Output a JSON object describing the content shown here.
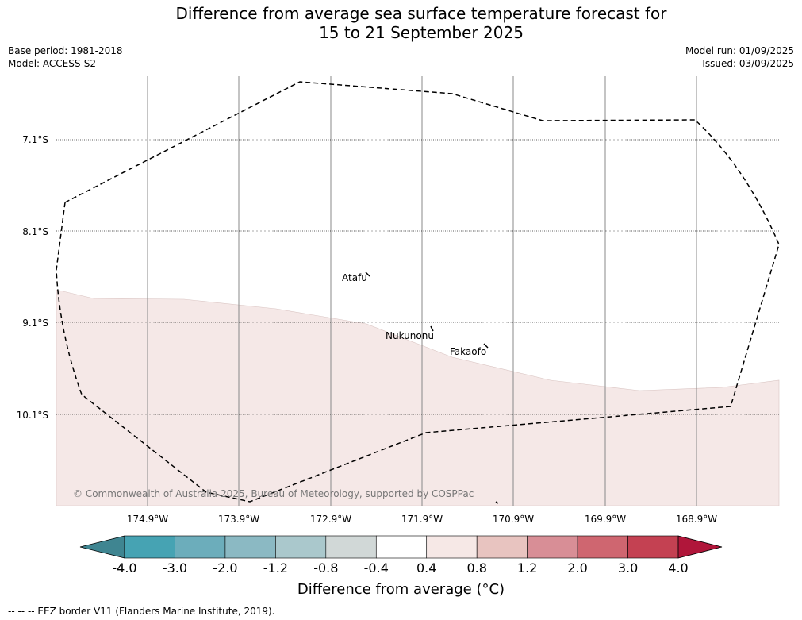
{
  "header": {
    "title_line1": "Difference from average sea surface temperature forecast for",
    "title_line2": "15 to 21 September 2025",
    "base_period": "Base period: 1981-2018",
    "model": "Model: ACCESS-S2",
    "model_run": "Model run: 01/09/2025",
    "issued": "Issued: 03/09/2025"
  },
  "map": {
    "lat_labels": [
      "7.1°S",
      "8.1°S",
      "9.1°S",
      "10.1°S"
    ],
    "lon_labels": [
      "174.9°W",
      "173.9°W",
      "172.9°W",
      "171.9°W",
      "170.9°W",
      "169.9°W",
      "168.9°W"
    ],
    "places": [
      {
        "name": "Atafu",
        "lon": -172.6,
        "lat": -8.55
      },
      {
        "name": "Nukunonu",
        "lon": -171.8,
        "lat": -9.2
      },
      {
        "name": "Fakaofo",
        "lon": -171.2,
        "lat": -9.37
      }
    ],
    "credit": "© Commonwealth of Australia 2025, Bureau of Meteorology, supported by COSPPac",
    "fill_colors": {
      "anomaly_0.4_0.8": "#f5e8e7",
      "ocean": "#ffffff"
    }
  },
  "colorbar": {
    "ticks": [
      "-4.0",
      "-3.0",
      "-2.0",
      "-1.2",
      "-0.8",
      "-0.4",
      "0.4",
      "0.8",
      "1.2",
      "2.0",
      "3.0",
      "4.0"
    ],
    "colors": [
      "#3f8591",
      "#46a3b3",
      "#6cadbb",
      "#8bb9c3",
      "#aac8cc",
      "#d1d8d7",
      "#ffffff",
      "#f6e8e6",
      "#e8c4c0",
      "#d88e96",
      "#cf6670",
      "#c44152",
      "#b0163a"
    ],
    "label": "Difference from average (°C)"
  },
  "footer": {
    "legend": "--  --  -- EEZ border V11 (Flanders Marine Institute, 2019)."
  }
}
